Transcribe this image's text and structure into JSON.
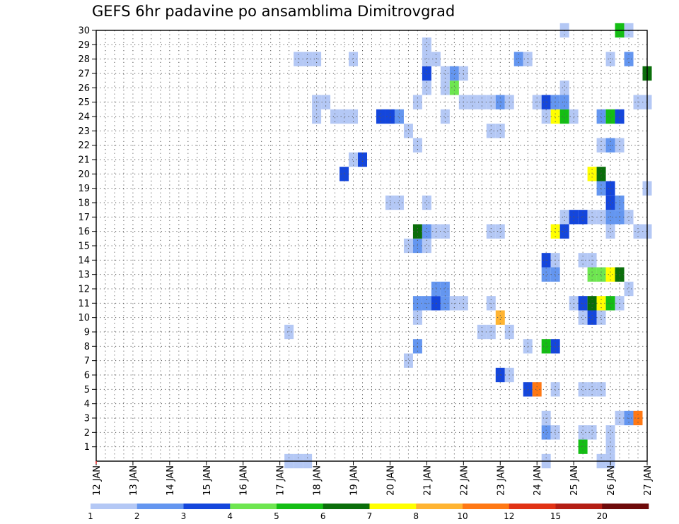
{
  "chart_data": {
    "type": "heatmap",
    "title": "GEFS 6hr padavine po ansamblima Dimitrovgrad",
    "xlabel": "",
    "ylabel": "",
    "x_ticks": [
      "12 JAN",
      "13 JAN",
      "14 JAN",
      "15 JAN",
      "16 JAN",
      "17 JAN",
      "18 JAN",
      "19 JAN",
      "20 JAN",
      "21 JAN",
      "22 JAN",
      "23 JAN",
      "24 JAN",
      "25 JAN",
      "26 JAN",
      "27 JAN"
    ],
    "x_range_days": [
      0,
      15
    ],
    "y_ticks": [
      1,
      2,
      3,
      4,
      5,
      6,
      7,
      8,
      9,
      10,
      11,
      12,
      13,
      14,
      15,
      16,
      17,
      18,
      19,
      20,
      21,
      22,
      23,
      24,
      25,
      26,
      27,
      28,
      29,
      30
    ],
    "y_range": [
      0,
      30
    ],
    "legend": {
      "thresholds": [
        "1",
        "2",
        "3",
        "4",
        "5",
        "6",
        "7",
        "8",
        "10",
        "12",
        "15",
        "20"
      ],
      "colors": [
        "#b4c8f5",
        "#6496f0",
        "#1446dc",
        "#6ee650",
        "#14be14",
        "#0a6e0a",
        "#ffff00",
        "#ffb432",
        "#ff7814",
        "#e13214",
        "#b41e14",
        "#6e0a0a"
      ]
    },
    "cells": [
      {
        "day": 5.25,
        "member": 0,
        "cat": 1
      },
      {
        "day": 5.5,
        "member": 0,
        "cat": 1
      },
      {
        "day": 5.75,
        "member": 0,
        "cat": 1
      },
      {
        "day": 12.25,
        "member": 0,
        "cat": 1
      },
      {
        "day": 13.75,
        "member": 0,
        "cat": 1
      },
      {
        "day": 14.0,
        "member": 0,
        "cat": 1
      },
      {
        "day": 13.25,
        "member": 1,
        "cat": 5
      },
      {
        "day": 14.0,
        "member": 1,
        "cat": 1
      },
      {
        "day": 12.25,
        "member": 2,
        "cat": 2
      },
      {
        "day": 12.5,
        "member": 2,
        "cat": 1
      },
      {
        "day": 13.25,
        "member": 2,
        "cat": 1
      },
      {
        "day": 13.5,
        "member": 2,
        "cat": 1
      },
      {
        "day": 14.0,
        "member": 2,
        "cat": 1
      },
      {
        "day": 12.25,
        "member": 3,
        "cat": 1
      },
      {
        "day": 14.25,
        "member": 3,
        "cat": 1
      },
      {
        "day": 14.5,
        "member": 3,
        "cat": 2
      },
      {
        "day": 14.75,
        "member": 3,
        "cat": 9
      },
      {
        "day": 11.75,
        "member": 5,
        "cat": 3
      },
      {
        "day": 12.0,
        "member": 5,
        "cat": 9
      },
      {
        "day": 12.5,
        "member": 5,
        "cat": 1
      },
      {
        "day": 13.25,
        "member": 5,
        "cat": 1
      },
      {
        "day": 13.5,
        "member": 5,
        "cat": 1
      },
      {
        "day": 13.75,
        "member": 5,
        "cat": 1
      },
      {
        "day": 11.0,
        "member": 6,
        "cat": 3
      },
      {
        "day": 11.25,
        "member": 6,
        "cat": 1
      },
      {
        "day": 8.5,
        "member": 7,
        "cat": 1
      },
      {
        "day": 8.75,
        "member": 8,
        "cat": 2
      },
      {
        "day": 11.75,
        "member": 8,
        "cat": 1
      },
      {
        "day": 12.25,
        "member": 8,
        "cat": 5
      },
      {
        "day": 12.5,
        "member": 8,
        "cat": 3
      },
      {
        "day": 5.25,
        "member": 9,
        "cat": 1
      },
      {
        "day": 10.5,
        "member": 9,
        "cat": 1
      },
      {
        "day": 10.75,
        "member": 9,
        "cat": 1
      },
      {
        "day": 11.25,
        "member": 9,
        "cat": 1
      },
      {
        "day": 8.75,
        "member": 10,
        "cat": 1
      },
      {
        "day": 11.0,
        "member": 10,
        "cat": 8
      },
      {
        "day": 13.25,
        "member": 10,
        "cat": 1
      },
      {
        "day": 13.5,
        "member": 10,
        "cat": 3
      },
      {
        "day": 13.75,
        "member": 10,
        "cat": 1
      },
      {
        "day": 8.75,
        "member": 11,
        "cat": 2
      },
      {
        "day": 9.0,
        "member": 11,
        "cat": 2
      },
      {
        "day": 9.25,
        "member": 11,
        "cat": 3
      },
      {
        "day": 9.5,
        "member": 11,
        "cat": 2
      },
      {
        "day": 9.75,
        "member": 11,
        "cat": 1
      },
      {
        "day": 10.0,
        "member": 11,
        "cat": 1
      },
      {
        "day": 10.75,
        "member": 11,
        "cat": 1
      },
      {
        "day": 13.0,
        "member": 11,
        "cat": 1
      },
      {
        "day": 13.25,
        "member": 11,
        "cat": 3
      },
      {
        "day": 13.5,
        "member": 11,
        "cat": 6
      },
      {
        "day": 13.75,
        "member": 11,
        "cat": 7
      },
      {
        "day": 14.0,
        "member": 11,
        "cat": 5
      },
      {
        "day": 14.25,
        "member": 11,
        "cat": 1
      },
      {
        "day": 9.25,
        "member": 12,
        "cat": 2
      },
      {
        "day": 9.5,
        "member": 12,
        "cat": 2
      },
      {
        "day": 14.5,
        "member": 12,
        "cat": 1
      },
      {
        "day": 12.25,
        "member": 13,
        "cat": 2
      },
      {
        "day": 12.5,
        "member": 13,
        "cat": 2
      },
      {
        "day": 13.5,
        "member": 13,
        "cat": 4
      },
      {
        "day": 13.75,
        "member": 13,
        "cat": 4
      },
      {
        "day": 14.0,
        "member": 13,
        "cat": 7
      },
      {
        "day": 14.25,
        "member": 13,
        "cat": 6
      },
      {
        "day": 12.25,
        "member": 14,
        "cat": 3
      },
      {
        "day": 12.5,
        "member": 14,
        "cat": 1
      },
      {
        "day": 13.25,
        "member": 14,
        "cat": 1
      },
      {
        "day": 13.5,
        "member": 14,
        "cat": 1
      },
      {
        "day": 8.5,
        "member": 15,
        "cat": 1
      },
      {
        "day": 8.75,
        "member": 15,
        "cat": 2
      },
      {
        "day": 9.0,
        "member": 15,
        "cat": 1
      },
      {
        "day": 8.75,
        "member": 16,
        "cat": 6
      },
      {
        "day": 9.0,
        "member": 16,
        "cat": 2
      },
      {
        "day": 9.25,
        "member": 16,
        "cat": 1
      },
      {
        "day": 9.5,
        "member": 16,
        "cat": 1
      },
      {
        "day": 10.75,
        "member": 16,
        "cat": 1
      },
      {
        "day": 11.0,
        "member": 16,
        "cat": 1
      },
      {
        "day": 12.5,
        "member": 16,
        "cat": 7
      },
      {
        "day": 12.75,
        "member": 16,
        "cat": 3
      },
      {
        "day": 14.0,
        "member": 16,
        "cat": 1
      },
      {
        "day": 14.75,
        "member": 16,
        "cat": 1
      },
      {
        "day": 15.0,
        "member": 16,
        "cat": 1
      },
      {
        "day": 12.75,
        "member": 17,
        "cat": 1
      },
      {
        "day": 13.0,
        "member": 17,
        "cat": 3
      },
      {
        "day": 13.25,
        "member": 17,
        "cat": 3
      },
      {
        "day": 13.5,
        "member": 17,
        "cat": 1
      },
      {
        "day": 13.75,
        "member": 17,
        "cat": 1
      },
      {
        "day": 14.0,
        "member": 17,
        "cat": 2
      },
      {
        "day": 14.25,
        "member": 17,
        "cat": 2
      },
      {
        "day": 14.5,
        "member": 17,
        "cat": 1
      },
      {
        "day": 8.0,
        "member": 18,
        "cat": 1
      },
      {
        "day": 8.25,
        "member": 18,
        "cat": 1
      },
      {
        "day": 9.0,
        "member": 18,
        "cat": 1
      },
      {
        "day": 14.0,
        "member": 18,
        "cat": 3
      },
      {
        "day": 14.25,
        "member": 18,
        "cat": 2
      },
      {
        "day": 13.75,
        "member": 19,
        "cat": 2
      },
      {
        "day": 14.0,
        "member": 19,
        "cat": 3
      },
      {
        "day": 15.0,
        "member": 19,
        "cat": 1
      },
      {
        "day": 6.75,
        "member": 20,
        "cat": 3
      },
      {
        "day": 13.5,
        "member": 20,
        "cat": 7
      },
      {
        "day": 13.75,
        "member": 20,
        "cat": 6
      },
      {
        "day": 7.0,
        "member": 21,
        "cat": 1
      },
      {
        "day": 7.25,
        "member": 21,
        "cat": 3
      },
      {
        "day": 8.75,
        "member": 22,
        "cat": 1
      },
      {
        "day": 13.75,
        "member": 22,
        "cat": 1
      },
      {
        "day": 14.0,
        "member": 22,
        "cat": 2
      },
      {
        "day": 14.25,
        "member": 22,
        "cat": 1
      },
      {
        "day": 8.5,
        "member": 23,
        "cat": 1
      },
      {
        "day": 10.75,
        "member": 23,
        "cat": 1
      },
      {
        "day": 11.0,
        "member": 23,
        "cat": 1
      },
      {
        "day": 6.0,
        "member": 24,
        "cat": 1
      },
      {
        "day": 6.5,
        "member": 24,
        "cat": 1
      },
      {
        "day": 6.75,
        "member": 24,
        "cat": 1
      },
      {
        "day": 7.0,
        "member": 24,
        "cat": 1
      },
      {
        "day": 7.75,
        "member": 24,
        "cat": 3
      },
      {
        "day": 8.0,
        "member": 24,
        "cat": 3
      },
      {
        "day": 8.25,
        "member": 24,
        "cat": 2
      },
      {
        "day": 9.5,
        "member": 24,
        "cat": 1
      },
      {
        "day": 12.25,
        "member": 24,
        "cat": 1
      },
      {
        "day": 12.5,
        "member": 24,
        "cat": 7
      },
      {
        "day": 12.75,
        "member": 24,
        "cat": 5
      },
      {
        "day": 13.0,
        "member": 24,
        "cat": 1
      },
      {
        "day": 13.75,
        "member": 24,
        "cat": 2
      },
      {
        "day": 14.0,
        "member": 24,
        "cat": 5
      },
      {
        "day": 14.25,
        "member": 24,
        "cat": 3
      },
      {
        "day": 6.0,
        "member": 25,
        "cat": 1
      },
      {
        "day": 6.25,
        "member": 25,
        "cat": 1
      },
      {
        "day": 8.75,
        "member": 25,
        "cat": 1
      },
      {
        "day": 10.0,
        "member": 25,
        "cat": 1
      },
      {
        "day": 10.25,
        "member": 25,
        "cat": 1
      },
      {
        "day": 10.5,
        "member": 25,
        "cat": 1
      },
      {
        "day": 10.75,
        "member": 25,
        "cat": 1
      },
      {
        "day": 11.0,
        "member": 25,
        "cat": 2
      },
      {
        "day": 11.25,
        "member": 25,
        "cat": 1
      },
      {
        "day": 12.0,
        "member": 25,
        "cat": 1
      },
      {
        "day": 12.25,
        "member": 25,
        "cat": 3
      },
      {
        "day": 12.5,
        "member": 25,
        "cat": 2
      },
      {
        "day": 12.75,
        "member": 25,
        "cat": 2
      },
      {
        "day": 14.75,
        "member": 25,
        "cat": 1
      },
      {
        "day": 15.0,
        "member": 25,
        "cat": 1
      },
      {
        "day": 9.0,
        "member": 26,
        "cat": 1
      },
      {
        "day": 9.5,
        "member": 26,
        "cat": 1
      },
      {
        "day": 9.75,
        "member": 26,
        "cat": 4
      },
      {
        "day": 12.75,
        "member": 26,
        "cat": 1
      },
      {
        "day": 9.0,
        "member": 27,
        "cat": 3
      },
      {
        "day": 9.5,
        "member": 27,
        "cat": 1
      },
      {
        "day": 9.75,
        "member": 27,
        "cat": 2
      },
      {
        "day": 10.0,
        "member": 27,
        "cat": 1
      },
      {
        "day": 15.0,
        "member": 27,
        "cat": 6
      },
      {
        "day": 5.5,
        "member": 28,
        "cat": 1
      },
      {
        "day": 5.75,
        "member": 28,
        "cat": 1
      },
      {
        "day": 6.0,
        "member": 28,
        "cat": 1
      },
      {
        "day": 7.0,
        "member": 28,
        "cat": 1
      },
      {
        "day": 9.0,
        "member": 28,
        "cat": 1
      },
      {
        "day": 9.25,
        "member": 28,
        "cat": 1
      },
      {
        "day": 11.5,
        "member": 28,
        "cat": 2
      },
      {
        "day": 11.75,
        "member": 28,
        "cat": 1
      },
      {
        "day": 14.0,
        "member": 28,
        "cat": 1
      },
      {
        "day": 14.5,
        "member": 28,
        "cat": 2
      },
      {
        "day": 9.0,
        "member": 29,
        "cat": 1
      },
      {
        "day": 12.75,
        "member": 30,
        "cat": 1
      },
      {
        "day": 14.25,
        "member": 30,
        "cat": 5
      },
      {
        "day": 14.5,
        "member": 30,
        "cat": 1
      }
    ]
  }
}
